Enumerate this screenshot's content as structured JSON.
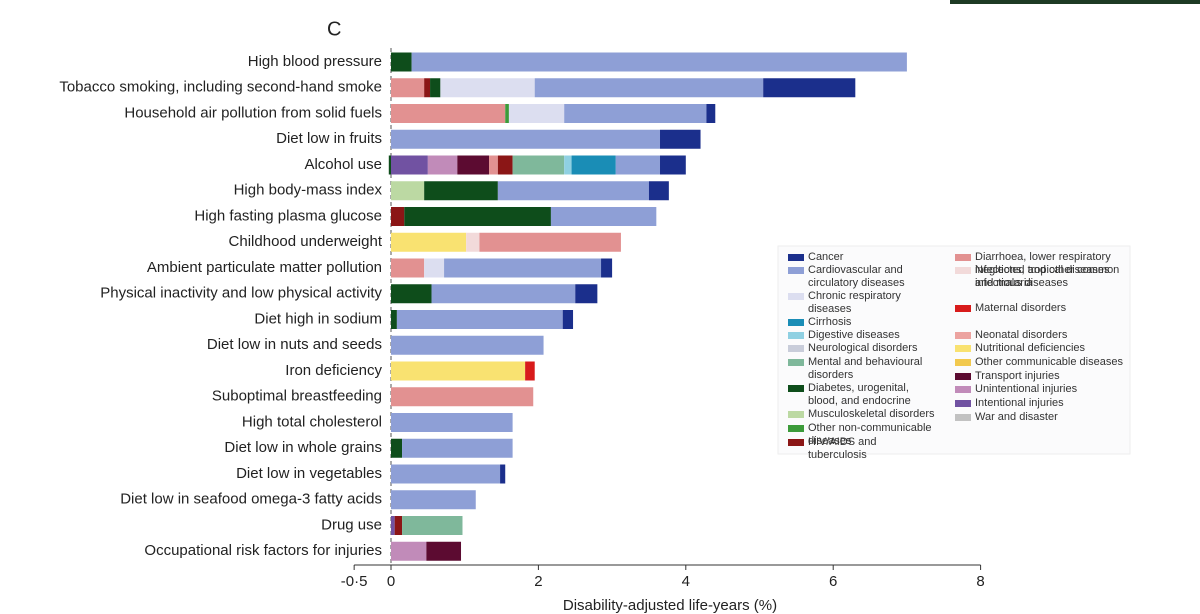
{
  "chart_data": {
    "type": "stacked-barh",
    "panel": "C",
    "xlabel": "Disability-adjusted life-years (%)",
    "categories": [
      "High blood pressure",
      "Tobacco smoking, including second-hand smoke",
      "Household air pollution from solid fuels",
      "Diet low in fruits",
      "Alcohol use",
      "High body-mass index",
      "High fasting plasma glucose",
      "Childhood underweight",
      "Ambient particulate matter pollution",
      "Physical inactivity and low physical activity",
      "Diet high in sodium",
      "Diet low in nuts and seeds",
      "Iron deficiency",
      "Suboptimal breastfeeding",
      "High total cholesterol",
      "Diet low in whole grains",
      "Diet low in vegetables",
      "Diet low in seafood omega-3 fatty acids",
      "Drug use",
      "Occupational risk factors for injuries"
    ],
    "xlim": [
      -0.5,
      8
    ],
    "xticks": [
      {
        "value": -0.5,
        "label": "-0·5"
      },
      0,
      2,
      4,
      6,
      8
    ],
    "series": [
      {
        "name": "Cancer",
        "color": "#1b2f8c",
        "values": [
          null,
          1.25,
          0.12,
          0.55,
          0.35,
          0.27,
          null,
          null,
          0.15,
          0.3,
          0.14,
          null,
          null,
          null,
          null,
          null,
          0.07,
          null,
          null,
          null
        ]
      },
      {
        "name": "Cardiovascular and circulatory diseases",
        "color": "#8e9fd6",
        "values": [
          6.72,
          3.1,
          1.93,
          3.65,
          0.6,
          2.05,
          1.43,
          null,
          2.13,
          1.95,
          2.25,
          2.07,
          null,
          null,
          1.65,
          1.5,
          1.48,
          1.15,
          null,
          null
        ]
      },
      {
        "name": "Chronic respiratory diseases",
        "color": "#dcdef0",
        "values": [
          null,
          1.28,
          0.75,
          null,
          null,
          null,
          null,
          null,
          0.27,
          null,
          null,
          null,
          null,
          null,
          null,
          null,
          null,
          null,
          null,
          null
        ]
      },
      {
        "name": "Cirrhosis",
        "color": "#1a8db6",
        "values": [
          null,
          null,
          null,
          null,
          0.6,
          null,
          null,
          null,
          null,
          null,
          null,
          null,
          null,
          null,
          null,
          null,
          null,
          null,
          null,
          null
        ]
      },
      {
        "name": "Digestive diseases",
        "color": "#8fd0e2",
        "values": [
          null,
          null,
          null,
          null,
          0.1,
          null,
          null,
          null,
          null,
          null,
          null,
          null,
          null,
          null,
          null,
          null,
          null,
          null,
          null,
          null
        ]
      },
      {
        "name": "Neurological disorders",
        "color": "#c9cdda",
        "values": [
          null,
          null,
          null,
          null,
          null,
          null,
          null,
          null,
          null,
          null,
          null,
          null,
          null,
          null,
          null,
          null,
          null,
          null,
          null,
          null
        ]
      },
      {
        "name": "Mental and behavioural disorders",
        "color": "#7fb89b",
        "values": [
          null,
          null,
          null,
          null,
          0.7,
          null,
          null,
          null,
          null,
          null,
          null,
          null,
          null,
          null,
          null,
          null,
          null,
          null,
          0.82,
          null
        ]
      },
      {
        "name": "Diabetes, urogenital, blood, and endocrine",
        "color": "#0e4d1b",
        "values": [
          0.28,
          0.14,
          null,
          null,
          -0.03,
          1.0,
          1.99,
          null,
          null,
          0.55,
          0.08,
          null,
          null,
          null,
          null,
          0.15,
          null,
          null,
          null,
          null
        ]
      },
      {
        "name": "Musculoskeletal disorders",
        "color": "#bcd9a3",
        "values": [
          null,
          null,
          null,
          null,
          null,
          0.45,
          null,
          null,
          null,
          null,
          null,
          null,
          null,
          null,
          null,
          null,
          null,
          null,
          null,
          null
        ]
      },
      {
        "name": "Other non-communicable diseases",
        "color": "#3c9b3a",
        "values": [
          null,
          null,
          0.05,
          null,
          null,
          null,
          null,
          null,
          null,
          null,
          null,
          null,
          null,
          null,
          null,
          null,
          null,
          null,
          null,
          null
        ]
      },
      {
        "name": "HIV/AIDS and tuberculosis",
        "color": "#8b1616",
        "values": [
          null,
          0.08,
          null,
          null,
          0.2,
          null,
          0.18,
          null,
          null,
          null,
          null,
          null,
          null,
          null,
          null,
          null,
          null,
          null,
          0.1,
          null
        ]
      },
      {
        "name": "Diarrhoea, lower respiratory infections, and other common infectious diseases",
        "color": "#e29191",
        "values": [
          null,
          0.45,
          1.55,
          null,
          0.12,
          null,
          null,
          1.92,
          0.45,
          null,
          null,
          null,
          null,
          1.93,
          null,
          null,
          null,
          null,
          null,
          null
        ]
      },
      {
        "name": "Neglected tropical diseases and malaria",
        "color": "#f2dada",
        "values": [
          null,
          null,
          null,
          null,
          null,
          null,
          null,
          0.18,
          null,
          null,
          null,
          null,
          null,
          null,
          null,
          null,
          null,
          null,
          null,
          null
        ]
      },
      {
        "name": "Maternal disorders",
        "color": "#d81b1b",
        "values": [
          null,
          null,
          null,
          null,
          null,
          null,
          null,
          null,
          null,
          null,
          null,
          null,
          0.13,
          null,
          null,
          null,
          null,
          null,
          null,
          null
        ]
      },
      {
        "name": "Neonatal disorders",
        "color": "#eca3a0",
        "values": [
          null,
          null,
          null,
          null,
          null,
          null,
          null,
          null,
          null,
          null,
          null,
          null,
          null,
          null,
          null,
          null,
          null,
          null,
          null,
          null
        ]
      },
      {
        "name": "Nutritional deficiencies",
        "color": "#f9e271",
        "values": [
          null,
          null,
          null,
          null,
          null,
          null,
          null,
          1.02,
          null,
          null,
          null,
          null,
          1.82,
          null,
          null,
          null,
          null,
          null,
          null,
          null
        ]
      },
      {
        "name": "Other communicable diseases",
        "color": "#f2c94e",
        "values": [
          null,
          null,
          null,
          null,
          null,
          null,
          null,
          null,
          null,
          null,
          null,
          null,
          null,
          null,
          null,
          null,
          null,
          null,
          null,
          null
        ]
      },
      {
        "name": "Transport injuries",
        "color": "#5c0b31",
        "values": [
          null,
          null,
          null,
          null,
          0.43,
          null,
          null,
          null,
          null,
          null,
          null,
          null,
          null,
          null,
          null,
          null,
          null,
          null,
          null,
          0.47
        ]
      },
      {
        "name": "Unintentional injuries",
        "color": "#c18bb9",
        "values": [
          null,
          null,
          null,
          null,
          0.4,
          null,
          null,
          null,
          null,
          null,
          null,
          null,
          null,
          null,
          null,
          null,
          null,
          null,
          null,
          0.48
        ]
      },
      {
        "name": "Intentional injuries",
        "color": "#7152a2",
        "values": [
          null,
          null,
          null,
          null,
          0.5,
          null,
          null,
          null,
          null,
          null,
          null,
          null,
          null,
          null,
          null,
          null,
          null,
          null,
          0.05,
          null
        ]
      },
      {
        "name": "War and disaster",
        "color": "#c2c2c2",
        "values": [
          null,
          null,
          null,
          null,
          null,
          null,
          null,
          null,
          null,
          null,
          null,
          null,
          null,
          null,
          null,
          null,
          null,
          null,
          null,
          null
        ]
      }
    ]
  }
}
